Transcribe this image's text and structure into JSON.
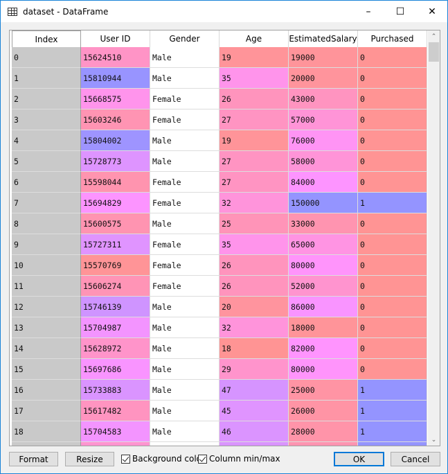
{
  "window": {
    "title": "dataset - DataFrame",
    "icon": "table-icon"
  },
  "table": {
    "columns": [
      "Index",
      "User ID",
      "Gender",
      "Age",
      "EstimatedSalary",
      "Purchased"
    ],
    "rows": [
      [
        "0",
        "15624510",
        "Male",
        "19",
        "19000",
        "0"
      ],
      [
        "1",
        "15810944",
        "Male",
        "35",
        "20000",
        "0"
      ],
      [
        "2",
        "15668575",
        "Female",
        "26",
        "43000",
        "0"
      ],
      [
        "3",
        "15603246",
        "Female",
        "27",
        "57000",
        "0"
      ],
      [
        "4",
        "15804002",
        "Male",
        "19",
        "76000",
        "0"
      ],
      [
        "5",
        "15728773",
        "Male",
        "27",
        "58000",
        "0"
      ],
      [
        "6",
        "15598044",
        "Female",
        "27",
        "84000",
        "0"
      ],
      [
        "7",
        "15694829",
        "Female",
        "32",
        "150000",
        "1"
      ],
      [
        "8",
        "15600575",
        "Male",
        "25",
        "33000",
        "0"
      ],
      [
        "9",
        "15727311",
        "Female",
        "35",
        "65000",
        "0"
      ],
      [
        "10",
        "15570769",
        "Female",
        "26",
        "80000",
        "0"
      ],
      [
        "11",
        "15606274",
        "Female",
        "26",
        "52000",
        "0"
      ],
      [
        "12",
        "15746139",
        "Male",
        "20",
        "86000",
        "0"
      ],
      [
        "13",
        "15704987",
        "Male",
        "32",
        "18000",
        "0"
      ],
      [
        "14",
        "15628972",
        "Male",
        "18",
        "82000",
        "0"
      ],
      [
        "15",
        "15697686",
        "Male",
        "29",
        "80000",
        "0"
      ],
      [
        "16",
        "15733883",
        "Male",
        "47",
        "25000",
        "1"
      ],
      [
        "17",
        "15617482",
        "Male",
        "45",
        "26000",
        "1"
      ],
      [
        "18",
        "15704583",
        "Male",
        "46",
        "28000",
        "1"
      ]
    ]
  },
  "buttons": {
    "format": "Format",
    "resize": "Resize",
    "ok": "OK",
    "cancel": "Cancel"
  },
  "checkboxes": {
    "background_color": {
      "label": "Background color",
      "checked": true
    },
    "column_minmax": {
      "label": "Column min/max",
      "checked": true
    }
  },
  "colors": {
    "index_bg": "#c9c9c9",
    "min_color": "#ff9494",
    "max_color": "#9494ff",
    "focus": "#0078d7"
  }
}
